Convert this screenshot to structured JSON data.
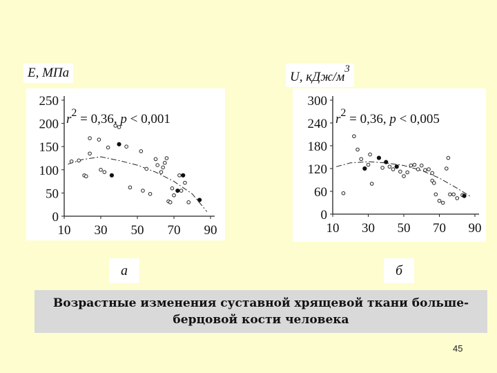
{
  "chart_data": [
    {
      "type": "scatter",
      "panel_label": "а",
      "ylabel": "E, МПа",
      "annotation": "r² = 0,36, p < 0,001",
      "annotation_parts": {
        "r": "r",
        "sup": "2",
        "mid": " = 0,36, ",
        "p": "p",
        "rest": " < 0,001"
      },
      "xlim": [
        10,
        90
      ],
      "ylim": [
        0,
        250
      ],
      "x_ticks": [
        10,
        30,
        50,
        70,
        90
      ],
      "y_ticks": [
        0,
        50,
        100,
        150,
        200,
        250
      ],
      "points_open": [
        [
          14,
          118
        ],
        [
          18,
          120
        ],
        [
          21,
          88
        ],
        [
          22,
          86
        ],
        [
          24,
          168
        ],
        [
          24,
          135
        ],
        [
          29,
          165
        ],
        [
          30,
          100
        ],
        [
          32,
          95
        ],
        [
          34,
          148
        ],
        [
          38,
          195
        ],
        [
          40,
          192
        ],
        [
          44,
          150
        ],
        [
          46,
          62
        ],
        [
          52,
          140
        ],
        [
          53,
          55
        ],
        [
          55,
          102
        ],
        [
          57,
          48
        ],
        [
          60,
          123
        ],
        [
          61,
          110
        ],
        [
          63,
          95
        ],
        [
          64,
          105
        ],
        [
          65,
          115
        ],
        [
          66,
          125
        ],
        [
          67,
          32
        ],
        [
          68,
          30
        ],
        [
          69,
          60
        ],
        [
          70,
          45
        ],
        [
          73,
          88
        ],
        [
          74,
          55
        ],
        [
          76,
          72
        ],
        [
          78,
          30
        ]
      ],
      "points_filled": [
        [
          36,
          88
        ],
        [
          40,
          155
        ],
        [
          72,
          55
        ],
        [
          75,
          88
        ],
        [
          84,
          35
        ]
      ],
      "trend": [
        [
          12,
          112
        ],
        [
          20,
          122
        ],
        [
          30,
          128
        ],
        [
          40,
          120
        ],
        [
          50,
          110
        ],
        [
          60,
          95
        ],
        [
          70,
          75
        ],
        [
          80,
          48
        ],
        [
          88,
          10
        ]
      ]
    },
    {
      "type": "scatter",
      "panel_label": "б",
      "ylabel": "U, кДж/м3",
      "annotation": "r² = 0,36, p < 0,005",
      "annotation_parts": {
        "r": "r",
        "sup": "2",
        "mid": " = 0,36, ",
        "p": "p",
        "rest": " < 0,005"
      },
      "xlim": [
        10,
        90
      ],
      "ylim": [
        0,
        300
      ],
      "x_ticks": [
        10,
        30,
        50,
        70,
        90
      ],
      "y_ticks": [
        0,
        60,
        120,
        180,
        240,
        300
      ],
      "points_open": [
        [
          16,
          55
        ],
        [
          22,
          205
        ],
        [
          24,
          170
        ],
        [
          26,
          145
        ],
        [
          28,
          120
        ],
        [
          30,
          130
        ],
        [
          31,
          157
        ],
        [
          32,
          80
        ],
        [
          36,
          148
        ],
        [
          38,
          122
        ],
        [
          42,
          125
        ],
        [
          44,
          118
        ],
        [
          48,
          112
        ],
        [
          50,
          100
        ],
        [
          52,
          110
        ],
        [
          54,
          128
        ],
        [
          56,
          130
        ],
        [
          58,
          118
        ],
        [
          60,
          128
        ],
        [
          62,
          116
        ],
        [
          64,
          118
        ],
        [
          66,
          108
        ],
        [
          66,
          88
        ],
        [
          67,
          82
        ],
        [
          68,
          52
        ],
        [
          70,
          35
        ],
        [
          72,
          30
        ],
        [
          74,
          120
        ],
        [
          75,
          148
        ],
        [
          76,
          52
        ],
        [
          78,
          52
        ],
        [
          80,
          42
        ],
        [
          83,
          50
        ]
      ],
      "points_filled": [
        [
          28,
          120
        ],
        [
          36,
          148
        ],
        [
          40,
          137
        ],
        [
          46,
          125
        ],
        [
          84,
          48
        ]
      ],
      "trend": [
        [
          12,
          125
        ],
        [
          20,
          135
        ],
        [
          30,
          138
        ],
        [
          40,
          135
        ],
        [
          50,
          128
        ],
        [
          60,
          115
        ],
        [
          70,
          95
        ],
        [
          80,
          68
        ],
        [
          88,
          45
        ]
      ]
    }
  ],
  "caption": {
    "line1": "Возрастные изменения суставной хрящевой ткани больше-",
    "line2": "берцовой кости человека"
  },
  "page_number": "45"
}
